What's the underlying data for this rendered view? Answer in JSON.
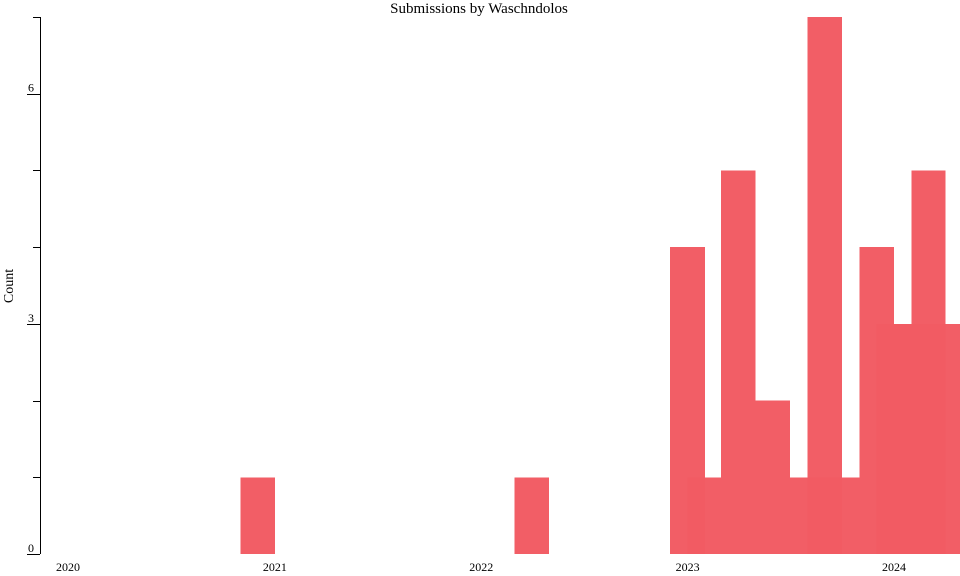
{
  "chart_data": {
    "type": "bar",
    "title": "Submissions by Waschndolos",
    "xlabel": "",
    "ylabel": "Count",
    "ylim": [
      0,
      7
    ],
    "y_ticks": [
      0,
      3,
      6
    ],
    "x_ticks": [
      "2020",
      "2021",
      "2022",
      "2023",
      "2024"
    ],
    "bar_color": "#f25b63",
    "series": [
      {
        "values": [
          {
            "start": "2020-11-01",
            "end": "2021-01-01",
            "count": 1
          },
          {
            "start": "2022-03-01",
            "end": "2022-05-01",
            "count": 1
          },
          {
            "start": "2022-12-01",
            "end": "2023-02-01",
            "count": 4
          },
          {
            "start": "2023-01-01",
            "end": "2023-03-01",
            "count": 1
          },
          {
            "start": "2023-03-01",
            "end": "2023-05-01",
            "count": 5
          },
          {
            "start": "2023-05-01",
            "end": "2023-07-01",
            "count": 2
          },
          {
            "start": "2023-07-01",
            "end": "2023-09-01",
            "count": 1
          },
          {
            "start": "2023-08-01",
            "end": "2023-10-01",
            "count": 7
          },
          {
            "start": "2023-09-01",
            "end": "2023-11-01",
            "count": 1
          },
          {
            "start": "2023-11-01",
            "end": "2024-01-01",
            "count": 4
          },
          {
            "start": "2023-12-01",
            "end": "2024-02-01",
            "count": 3
          },
          {
            "start": "2024-01-01",
            "end": "2024-03-01",
            "count": 3
          },
          {
            "start": "2024-02-01",
            "end": "2024-04-01",
            "count": 5
          },
          {
            "start": "2024-03-01",
            "end": "2024-05-01",
            "count": 3
          }
        ]
      }
    ]
  }
}
